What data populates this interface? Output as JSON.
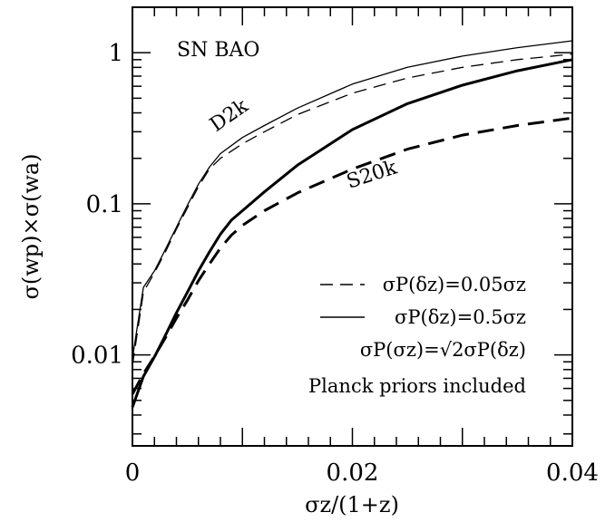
{
  "chart_data": {
    "type": "line",
    "title": "",
    "xlabel": "σz/(1+z)",
    "ylabel": "σ(wp)×σ(wa)",
    "xlim": [
      0,
      0.04
    ],
    "ylim": [
      0.0025,
      2.0
    ],
    "yscale": "log",
    "x_ticks": [
      0,
      0.02,
      0.04
    ],
    "x_tick_labels": [
      "0",
      "0.02",
      "0.04"
    ],
    "y_ticks": [
      0.01,
      0.1,
      1
    ],
    "y_tick_labels": [
      "0.01",
      "0.1",
      "1"
    ],
    "grid": false,
    "legend_position": "lower-right",
    "panel_label": "SN BAO",
    "series": [
      {
        "name": "",
        "style": "dashed",
        "weight": "thin",
        "x": [
          0,
          0.001,
          0.002,
          0.003,
          0.004,
          0.005,
          0.006,
          0.007,
          0.008,
          0.01,
          0.012,
          0.015,
          0.02,
          0.025,
          0.03,
          0.035,
          0.04
        ],
        "y": [
          0.0085,
          0.026,
          0.035,
          0.048,
          0.068,
          0.094,
          0.13,
          0.17,
          0.2,
          0.25,
          0.3,
          0.39,
          0.54,
          0.68,
          0.8,
          0.9,
          0.98
        ]
      },
      {
        "name": "",
        "style": "solid",
        "weight": "thin",
        "x": [
          0,
          0.001,
          0.002,
          0.003,
          0.004,
          0.005,
          0.006,
          0.007,
          0.008,
          0.01,
          0.012,
          0.015,
          0.02,
          0.025,
          0.03,
          0.035,
          0.04
        ],
        "y": [
          0.0095,
          0.028,
          0.036,
          0.05,
          0.07,
          0.098,
          0.135,
          0.175,
          0.215,
          0.275,
          0.33,
          0.43,
          0.62,
          0.8,
          0.95,
          1.08,
          1.2
        ]
      },
      {
        "name": "",
        "style": "dashed",
        "weight": "thick",
        "x": [
          0,
          0.001,
          0.002,
          0.003,
          0.004,
          0.005,
          0.006,
          0.007,
          0.008,
          0.009,
          0.01,
          0.012,
          0.015,
          0.02,
          0.025,
          0.03,
          0.035,
          0.04
        ],
        "y": [
          0.0055,
          0.0075,
          0.0098,
          0.013,
          0.0175,
          0.023,
          0.031,
          0.04,
          0.051,
          0.062,
          0.072,
          0.09,
          0.118,
          0.17,
          0.23,
          0.285,
          0.33,
          0.37
        ]
      },
      {
        "name": "",
        "style": "solid",
        "weight": "thick",
        "x": [
          0,
          0.001,
          0.002,
          0.003,
          0.004,
          0.005,
          0.006,
          0.007,
          0.008,
          0.009,
          0.01,
          0.012,
          0.015,
          0.02,
          0.025,
          0.03,
          0.035,
          0.04
        ],
        "y": [
          0.0045,
          0.0072,
          0.0097,
          0.0135,
          0.019,
          0.026,
          0.036,
          0.048,
          0.063,
          0.078,
          0.09,
          0.12,
          0.18,
          0.31,
          0.46,
          0.61,
          0.76,
          0.9
        ]
      }
    ],
    "curve_labels": [
      {
        "text": "D2k",
        "series_index": 1
      },
      {
        "text": "S20k",
        "series_index": 2
      }
    ],
    "legend": [
      {
        "style": "dashed",
        "text": "σP(δz)=0.05σz"
      },
      {
        "style": "solid",
        "text": "σP(δz)=0.5σz"
      },
      {
        "style": "none",
        "text": "σP(σz)=√2σP(δz)"
      },
      {
        "style": "none",
        "text": "Planck priors included"
      }
    ]
  }
}
